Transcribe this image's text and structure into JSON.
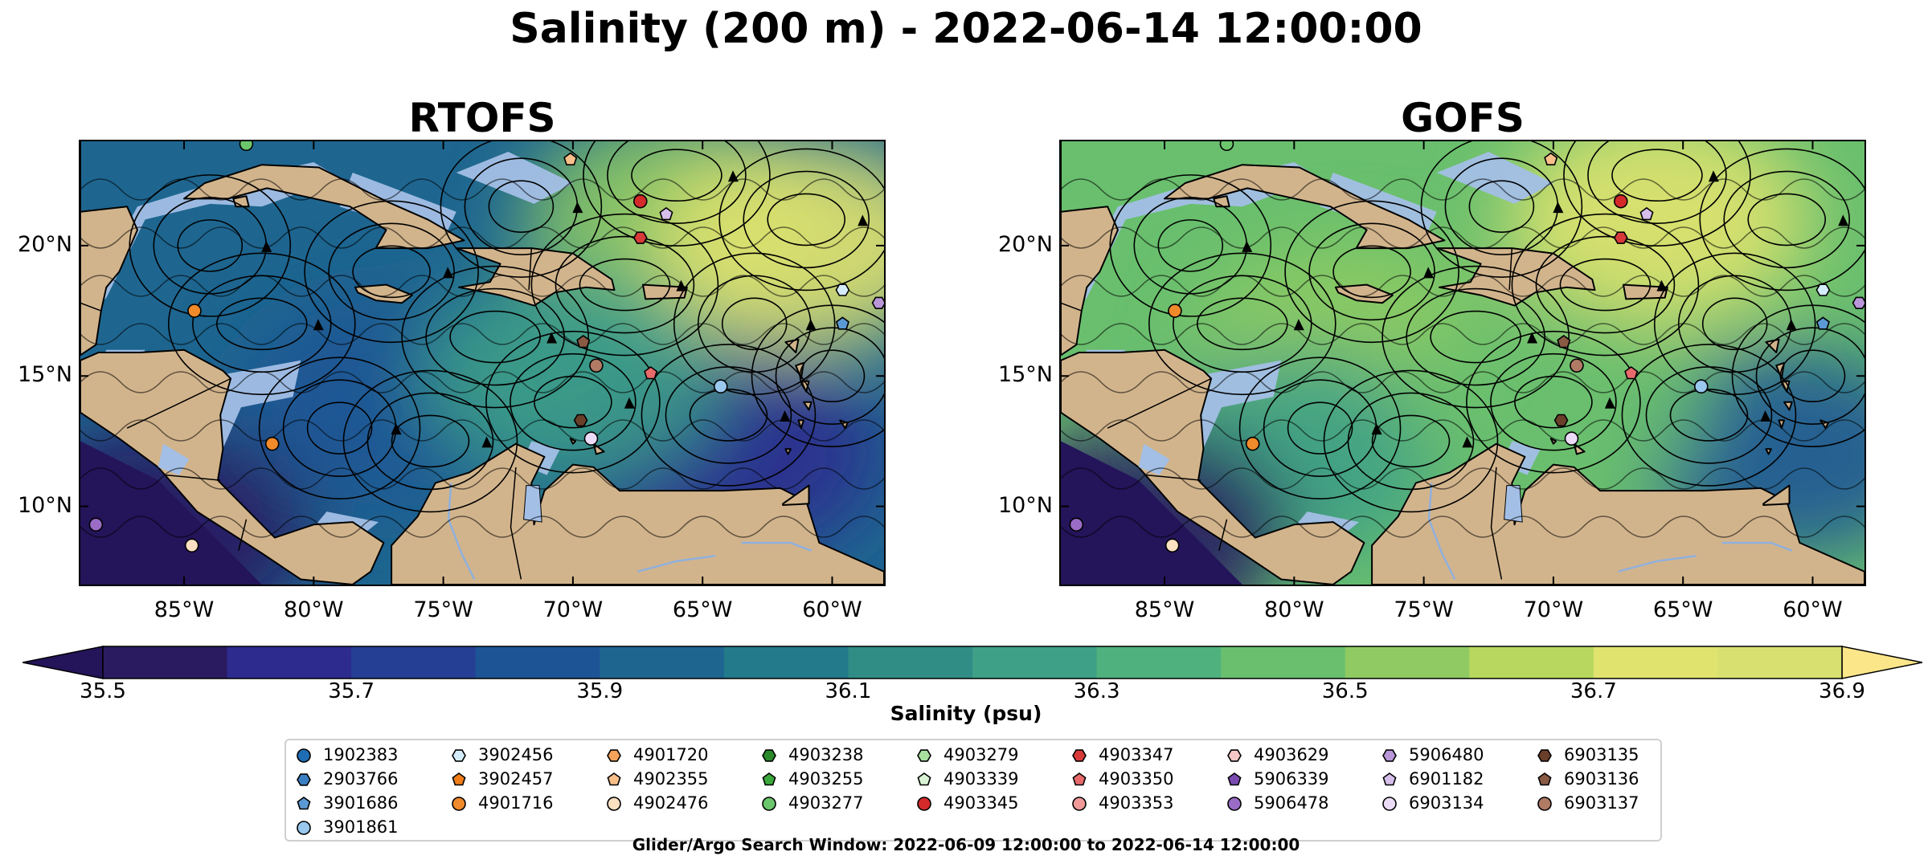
{
  "figure_title": "Salinity (200 m) - 2022-06-14 12:00:00",
  "colors": {
    "land": "#d2b48c",
    "shallow_water": "#a3bfe6",
    "streamlines": "#000000",
    "colormap": [
      "#2a1b60",
      "#2d2b8e",
      "#253f94",
      "#1d5495",
      "#1e6690",
      "#237a8a",
      "#2f8d86",
      "#3da087",
      "#4fb17d",
      "#69bf6e",
      "#8fcb62",
      "#b8d75f",
      "#e1e36f"
    ],
    "extend_low": "#24145a",
    "extend_high": "#fbe68a"
  },
  "chart_data": [
    {
      "type": "heatmap",
      "title": "RTOFS",
      "variable": "Salinity",
      "units": "psu",
      "depth": "200 m",
      "xlim": [
        -89,
        -58
      ],
      "ylim": [
        7,
        24
      ],
      "x_ticks": [
        "85°W",
        "80°W",
        "75°W",
        "70°W",
        "65°W",
        "60°W"
      ],
      "x_tick_values": [
        -85,
        -80,
        -75,
        -70,
        -65,
        -60
      ],
      "y_ticks": [
        "20°N",
        "15°N",
        "10°N"
      ],
      "y_tick_values": [
        20,
        15,
        10
      ],
      "overlay": "current streamlines",
      "predominant_salinity_psu": 35.95,
      "salinity_field_regions": [
        {
          "lon": -77,
          "lat": 14,
          "salinity": 35.9
        },
        {
          "lon": -66,
          "lat": 21,
          "salinity": 36.6
        },
        {
          "lon": -61,
          "lat": 20,
          "salinity": 36.8
        },
        {
          "lon": -64,
          "lat": 12,
          "salinity": 35.65
        },
        {
          "lon": -86,
          "lat": 9,
          "salinity": 35.5
        },
        {
          "lon": -70,
          "lat": 15,
          "salinity": 36.3
        }
      ],
      "profile_markers": [
        {
          "id": "4901716",
          "lon": -84.6,
          "lat": 17.5
        },
        {
          "id": "4901716",
          "lon": -81.6,
          "lat": 12.4
        },
        {
          "id": "5906478",
          "lon": -88.4,
          "lat": 9.3
        },
        {
          "id": "4902476",
          "lon": -84.7,
          "lat": 8.5
        },
        {
          "id": "4903277",
          "lon": -82.6,
          "lat": 23.9
        },
        {
          "id": "4902355",
          "lon": -70.1,
          "lat": 23.3
        },
        {
          "id": "4903345",
          "lon": -67.4,
          "lat": 21.7
        },
        {
          "id": "4903347",
          "lon": -67.4,
          "lat": 20.3
        },
        {
          "id": "6901182",
          "lon": -66.4,
          "lat": 21.2
        },
        {
          "id": "6903136",
          "lon": -69.6,
          "lat": 16.3
        },
        {
          "id": "6903137",
          "lon": -69.1,
          "lat": 15.4
        },
        {
          "id": "4903350",
          "lon": -67.0,
          "lat": 15.1
        },
        {
          "id": "6903135",
          "lon": -69.7,
          "lat": 13.3
        },
        {
          "id": "6903134",
          "lon": -69.3,
          "lat": 12.6
        },
        {
          "id": "3901861",
          "lon": -64.3,
          "lat": 14.6
        },
        {
          "id": "3902456",
          "lon": -59.6,
          "lat": 18.3
        },
        {
          "id": "3901686",
          "lon": -59.6,
          "lat": 17.0
        },
        {
          "id": "5906480",
          "lon": -58.2,
          "lat": 17.8
        }
      ]
    },
    {
      "type": "heatmap",
      "title": "GOFS",
      "variable": "Salinity",
      "units": "psu",
      "depth": "200 m",
      "xlim": [
        -89,
        -58
      ],
      "ylim": [
        7,
        24
      ],
      "x_ticks": [
        "85°W",
        "80°W",
        "75°W",
        "70°W",
        "65°W",
        "60°W"
      ],
      "x_tick_values": [
        -85,
        -80,
        -75,
        -70,
        -65,
        -60
      ],
      "y_ticks": [
        "20°N",
        "15°N",
        "10°N"
      ],
      "y_tick_values": [
        20,
        15,
        10
      ],
      "overlay": "current streamlines",
      "predominant_salinity_psu": 36.5,
      "salinity_field_regions": [
        {
          "lon": -78,
          "lat": 16,
          "salinity": 36.6
        },
        {
          "lon": -66,
          "lat": 21,
          "salinity": 36.8
        },
        {
          "lon": -80,
          "lat": 12,
          "salinity": 36.3
        },
        {
          "lon": -61,
          "lat": 12,
          "salinity": 35.9
        },
        {
          "lon": -86,
          "lat": 9,
          "salinity": 35.5
        },
        {
          "lon": -70,
          "lat": 14,
          "salinity": 36.5
        }
      ],
      "profile_markers": [
        {
          "id": "4901716",
          "lon": -84.6,
          "lat": 17.5
        },
        {
          "id": "4901716",
          "lon": -81.6,
          "lat": 12.4
        },
        {
          "id": "5906478",
          "lon": -88.4,
          "lat": 9.3
        },
        {
          "id": "4902476",
          "lon": -84.7,
          "lat": 8.5
        },
        {
          "id": "4903277",
          "lon": -82.6,
          "lat": 23.9
        },
        {
          "id": "4902355",
          "lon": -70.1,
          "lat": 23.3
        },
        {
          "id": "4903345",
          "lon": -67.4,
          "lat": 21.7
        },
        {
          "id": "4903347",
          "lon": -67.4,
          "lat": 20.3
        },
        {
          "id": "6901182",
          "lon": -66.4,
          "lat": 21.2
        },
        {
          "id": "6903136",
          "lon": -69.6,
          "lat": 16.3
        },
        {
          "id": "6903137",
          "lon": -69.1,
          "lat": 15.4
        },
        {
          "id": "4903350",
          "lon": -67.0,
          "lat": 15.1
        },
        {
          "id": "6903135",
          "lon": -69.7,
          "lat": 13.3
        },
        {
          "id": "6903134",
          "lon": -69.3,
          "lat": 12.6
        },
        {
          "id": "3901861",
          "lon": -64.3,
          "lat": 14.6
        },
        {
          "id": "3902456",
          "lon": -59.6,
          "lat": 18.3
        },
        {
          "id": "3901686",
          "lon": -59.6,
          "lat": 17.0
        },
        {
          "id": "5906480",
          "lon": -58.2,
          "lat": 17.8
        }
      ]
    }
  ],
  "colorbar": {
    "label": "Salinity (psu)",
    "min": 35.5,
    "max": 36.9,
    "ticks": [
      "35.5",
      "35.7",
      "35.9",
      "36.1",
      "36.3",
      "36.5",
      "36.7",
      "36.9"
    ],
    "extend": "both"
  },
  "legend": {
    "columns": [
      [
        {
          "id": "1902383",
          "marker": "circle",
          "color": "#1f6db5"
        },
        {
          "id": "2903766",
          "marker": "hexagon",
          "color": "#3a7fc2"
        },
        {
          "id": "3901686",
          "marker": "pentagon",
          "color": "#5a99d4"
        },
        {
          "id": "3901861",
          "marker": "circle",
          "color": "#9ac8ee"
        }
      ],
      [
        {
          "id": "3902456",
          "marker": "hexagon",
          "color": "#d4ebfa"
        },
        {
          "id": "3902457",
          "marker": "pentagon",
          "color": "#f07d1a"
        },
        {
          "id": "4901716",
          "marker": "circle",
          "color": "#f08a2a"
        }
      ],
      [
        {
          "id": "4901720",
          "marker": "hexagon",
          "color": "#f5a25a"
        },
        {
          "id": "4902355",
          "marker": "pentagon",
          "color": "#f8bf8a"
        },
        {
          "id": "4902476",
          "marker": "circle",
          "color": "#fbe0c2"
        }
      ],
      [
        {
          "id": "4903238",
          "marker": "hexagon",
          "color": "#2a8a2a"
        },
        {
          "id": "4903255",
          "marker": "pentagon",
          "color": "#3aa83a"
        },
        {
          "id": "4903277",
          "marker": "circle",
          "color": "#6cc66c"
        }
      ],
      [
        {
          "id": "4903279",
          "marker": "hexagon",
          "color": "#a8e0a0"
        },
        {
          "id": "4903339",
          "marker": "pentagon",
          "color": "#d8f4d2"
        },
        {
          "id": "4903345",
          "marker": "circle",
          "color": "#d42a2a"
        }
      ],
      [
        {
          "id": "4903347",
          "marker": "hexagon",
          "color": "#d83a3a"
        },
        {
          "id": "4903350",
          "marker": "pentagon",
          "color": "#e86a6a"
        },
        {
          "id": "4903353",
          "marker": "circle",
          "color": "#f09a9a"
        }
      ],
      [
        {
          "id": "4903629",
          "marker": "hexagon",
          "color": "#f7c8c8"
        },
        {
          "id": "5906339",
          "marker": "pentagon",
          "color": "#7a4ab0"
        },
        {
          "id": "5906478",
          "marker": "circle",
          "color": "#9a6cc6"
        }
      ],
      [
        {
          "id": "5906480",
          "marker": "hexagon",
          "color": "#b896d8"
        },
        {
          "id": "6901182",
          "marker": "pentagon",
          "color": "#d6bfea"
        },
        {
          "id": "6903134",
          "marker": "circle",
          "color": "#ecdcf7"
        }
      ],
      [
        {
          "id": "6903135",
          "marker": "hexagon",
          "color": "#6a3f2a"
        },
        {
          "id": "6903136",
          "marker": "pentagon",
          "color": "#8a5a44"
        },
        {
          "id": "6903137",
          "marker": "circle",
          "color": "#b07a64"
        }
      ]
    ]
  },
  "footnote": "Glider/Argo Search Window: 2022-06-09 12:00:00 to 2022-06-14 12:00:00"
}
